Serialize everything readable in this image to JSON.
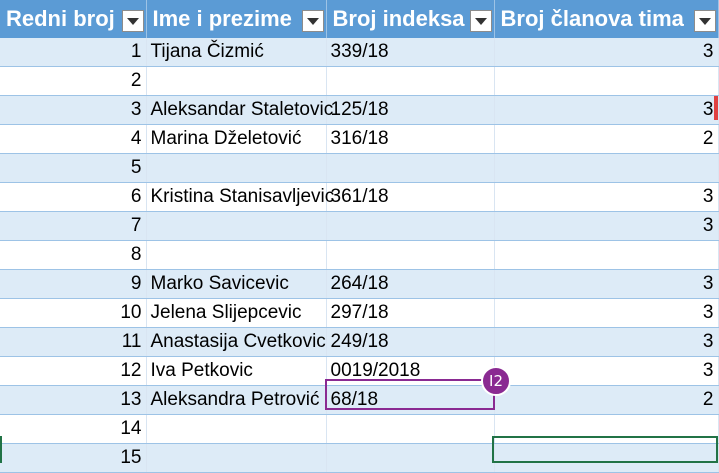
{
  "table": {
    "headers": [
      {
        "label": "Redni broj"
      },
      {
        "label": "Ime i prezime"
      },
      {
        "label": "Broj indeksa"
      },
      {
        "label": "Broj članova tima"
      }
    ],
    "rows": [
      {
        "rb": "1",
        "ime": "Tijana Čizmić",
        "indeks": "339/18",
        "clanovi": "3"
      },
      {
        "rb": "2",
        "ime": "",
        "indeks": "",
        "clanovi": ""
      },
      {
        "rb": "3",
        "ime": "Aleksandar Staletovic",
        "indeks": "125/18",
        "clanovi": "3"
      },
      {
        "rb": "4",
        "ime": "Marina Dželetović",
        "indeks": "316/18",
        "clanovi": "2"
      },
      {
        "rb": "5",
        "ime": "",
        "indeks": "",
        "clanovi": ""
      },
      {
        "rb": "6",
        "ime": "Kristina Stanisavljevic",
        "indeks": "361/18",
        "clanovi": "3"
      },
      {
        "rb": "7",
        "ime": "",
        "indeks": "",
        "clanovi": "3"
      },
      {
        "rb": "8",
        "ime": "",
        "indeks": "",
        "clanovi": ""
      },
      {
        "rb": "9",
        "ime": "Marko Savicevic",
        "indeks": "264/18",
        "clanovi": "3"
      },
      {
        "rb": "10",
        "ime": "Jelena Slijepcevic",
        "indeks": "297/18",
        "clanovi": "3"
      },
      {
        "rb": "11",
        "ime": "Anastasija Cvetkovic",
        "indeks": "249/18",
        "clanovi": "3"
      },
      {
        "rb": "12",
        "ime": "Iva Petkovic",
        "indeks": "0019/2018",
        "clanovi": "3"
      },
      {
        "rb": "13",
        "ime": "Aleksandra Petrović",
        "indeks": "68/18",
        "clanovi": "2"
      },
      {
        "rb": "14",
        "ime": "",
        "indeks": "",
        "clanovi": ""
      },
      {
        "rb": "15",
        "ime": "",
        "indeks": "",
        "clanovi": ""
      }
    ]
  },
  "selection_badge": {
    "label": "I2"
  },
  "colors": {
    "header_bg": "#5b9bd5",
    "band_bg": "#ddebf7",
    "selection_border": "#8a2a92",
    "active_cell_border": "#217346"
  },
  "icons": {
    "filter": "chevron-down-icon"
  }
}
